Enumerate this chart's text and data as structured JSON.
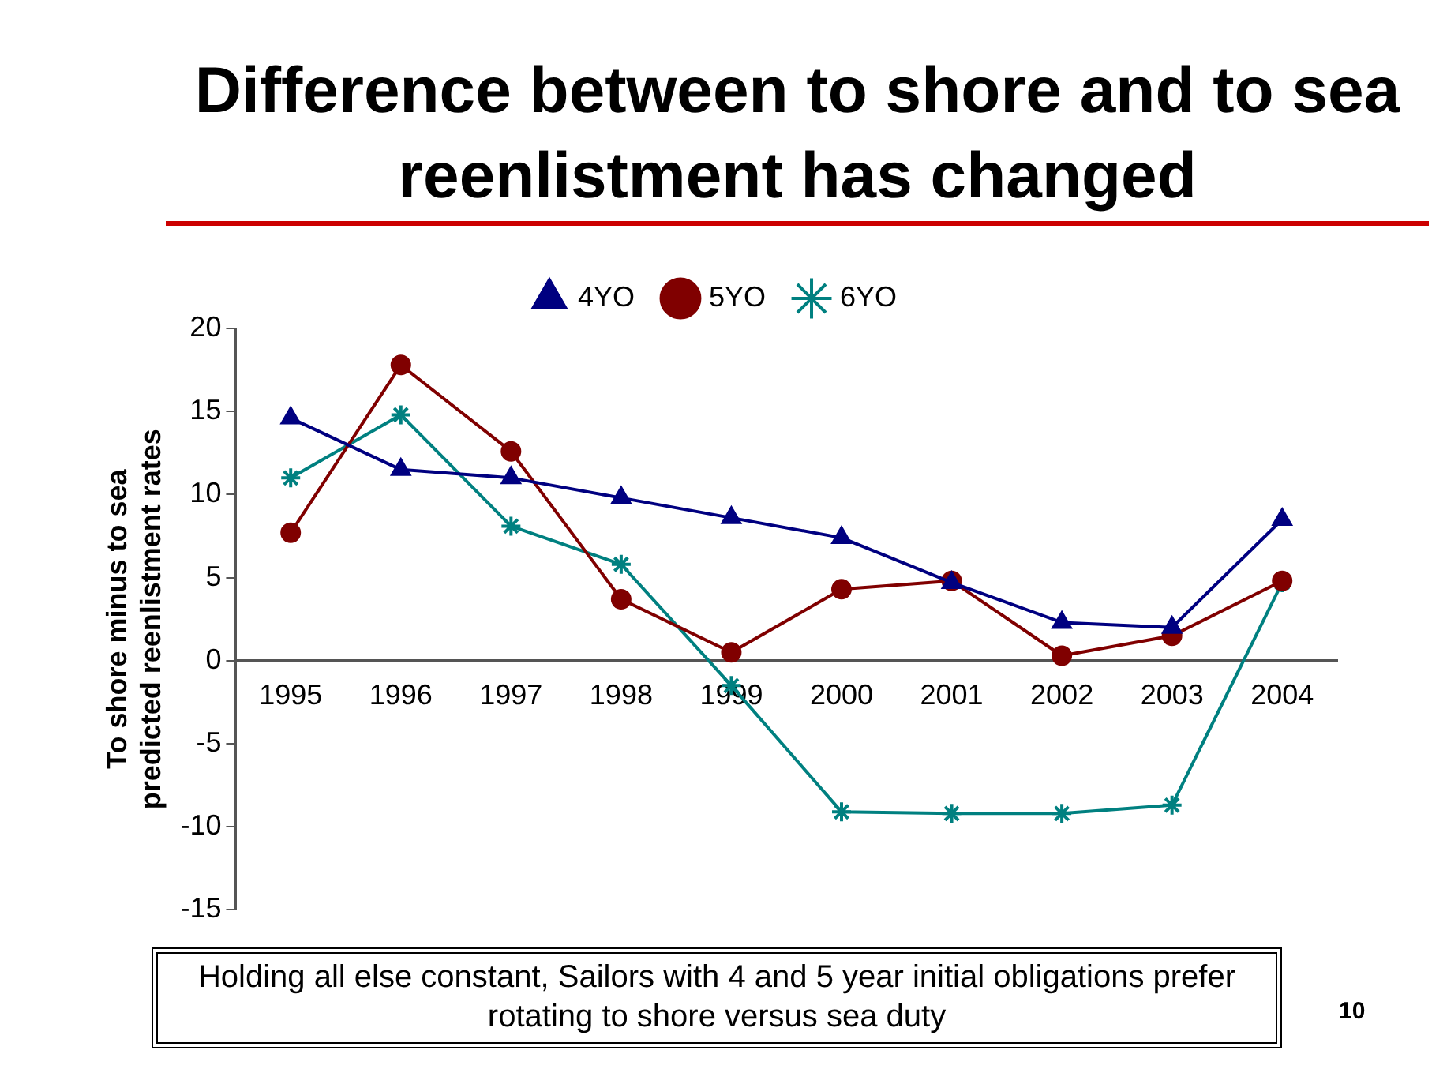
{
  "chart_data": {
    "type": "line",
    "title": "Difference between to shore and to sea reenlistment has changed",
    "ylabel": "To shore minus to sea predicted reenlistment rates",
    "categories": [
      "1995",
      "1996",
      "1997",
      "1998",
      "1999",
      "2000",
      "2001",
      "2002",
      "2003",
      "2004"
    ],
    "series": [
      {
        "name": "4YO",
        "color": "#000080",
        "marker": "triangle",
        "values": [
          14.6,
          11.5,
          11.0,
          9.8,
          8.6,
          7.4,
          4.7,
          2.3,
          2.0,
          8.5
        ]
      },
      {
        "name": "5YO",
        "color": "#800000",
        "marker": "circle",
        "values": [
          7.7,
          17.8,
          12.6,
          3.7,
          0.5,
          4.3,
          4.8,
          0.3,
          1.5,
          4.8
        ]
      },
      {
        "name": "6YO",
        "color": "#008080",
        "marker": "cross",
        "values": [
          11.0,
          14.8,
          8.1,
          5.8,
          -1.5,
          -9.1,
          -9.2,
          -9.2,
          -8.7,
          4.7
        ]
      }
    ],
    "ylim": [
      -15,
      20
    ],
    "yticks": [
      -15,
      -10,
      -5,
      0,
      5,
      10,
      15,
      20
    ],
    "grid": false,
    "legend": "top",
    "line_style": "solid",
    "annotations": [
      "Holding all else constant, Sailors with 4 and 5 year initial obligations prefer rotating to shore versus sea duty",
      "10"
    ]
  }
}
